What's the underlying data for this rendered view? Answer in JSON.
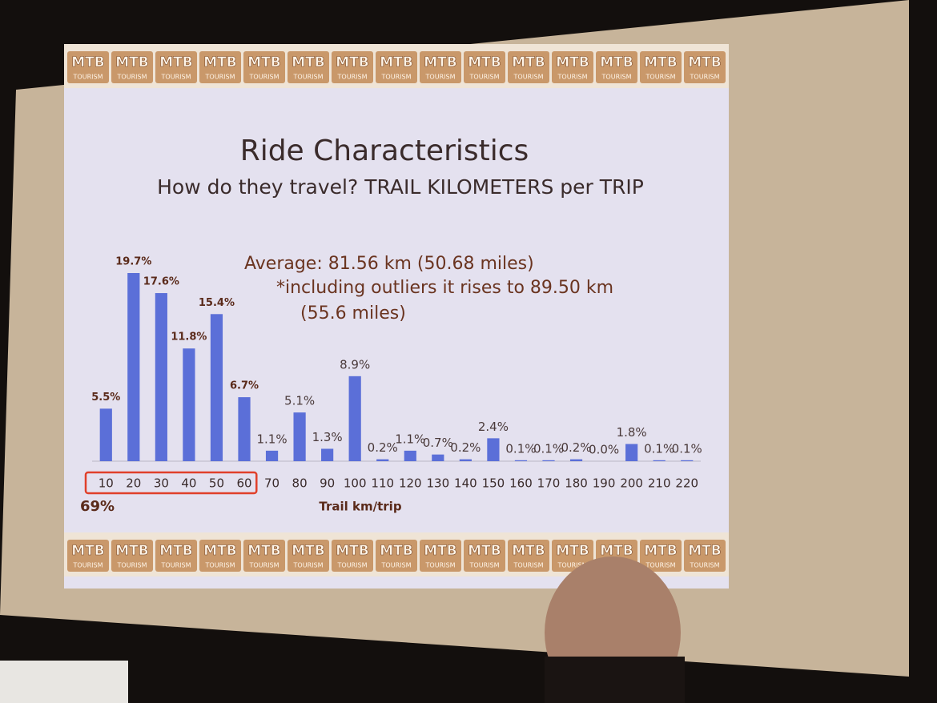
{
  "chart_data": {
    "type": "bar",
    "title": "Ride Characteristics",
    "subtitle": "How do they travel?  TRAIL KILOMETERS per TRIP",
    "annotations": [
      "Average: 81.56 km (50.68 miles)",
      "*including outliers it rises to 89.50 km",
      "(55.6 miles)"
    ],
    "x_label": "Trail km/trip",
    "highlight_label": "69%",
    "categories": [
      "10",
      "20",
      "30",
      "40",
      "50",
      "60",
      "70",
      "80",
      "90",
      "100",
      "110",
      "120",
      "130",
      "140",
      "150",
      "160",
      "170",
      "180",
      "190",
      "200",
      "210",
      "220"
    ],
    "values": [
      5.5,
      19.7,
      17.6,
      11.8,
      15.4,
      6.7,
      1.1,
      5.1,
      1.3,
      8.9,
      0.2,
      1.1,
      0.7,
      0.2,
      2.4,
      0.1,
      0.1,
      0.2,
      0.0,
      1.8,
      0.1,
      0.1
    ],
    "value_labels": [
      "5.5%",
      "19.7%",
      "17.6%",
      "11.8%",
      "15.4%",
      "6.7%",
      "1.1%",
      "5.1%",
      "1.3%",
      "8.9%",
      "0.2%",
      "1.1%",
      "0.7%",
      "0.2%",
      "2.4%",
      "0.1%",
      "0.1%",
      "0.2%",
      "0.0%",
      "1.8%",
      "0.1%",
      "0.1%"
    ],
    "color": "#5b6fd8"
  },
  "branding": {
    "logo": "MTB",
    "tagline": "TOURISM"
  }
}
